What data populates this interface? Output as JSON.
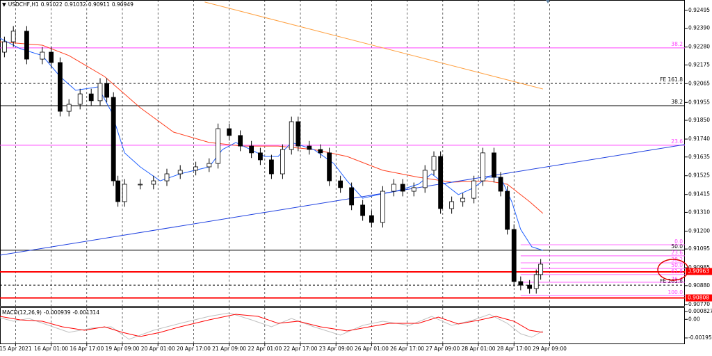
{
  "chart_data": [
    {
      "type": "candlestick",
      "title": "USDCHF,H1",
      "header_values": [
        0.91022,
        0.91032,
        0.90911,
        0.90949
      ],
      "x": [
        2,
        6,
        12,
        19,
        23,
        27,
        31,
        36,
        41,
        45,
        48,
        51,
        53,
        56,
        63,
        69,
        75,
        81,
        88,
        94,
        98,
        103,
        108,
        113,
        117,
        122,
        127,
        131,
        134,
        139,
        144,
        148,
        153,
        158,
        163,
        167,
        172,
        177,
        181,
        186,
        191,
        195,
        198,
        203,
        208,
        213,
        217,
        222,
        225,
        228,
        231,
        234,
        238,
        241,
        243
      ],
      "open": [
        0.9225,
        0.92311,
        0.92373,
        0.92209,
        0.9225,
        0.92189,
        0.91903,
        0.91944,
        0.92005,
        0.91965,
        0.92067,
        0.91985,
        0.91495,
        0.91373,
        0.91475,
        0.91475,
        0.91495,
        0.91536,
        0.91557,
        0.91577,
        0.91597,
        0.91801,
        0.91761,
        0.91699,
        0.91659,
        0.91618,
        0.91536,
        0.91679,
        0.91842,
        0.91699,
        0.91679,
        0.91659,
        0.91495,
        0.91455,
        0.91353,
        0.91291,
        0.91251,
        0.91434,
        0.91475,
        0.91434,
        0.91455,
        0.91557,
        0.91638,
        0.91332,
        0.91373,
        0.91393,
        0.91495,
        0.91659,
        0.91516,
        0.91434,
        0.9121,
        0.90904,
        0.90883,
        0.90863,
        0.90945
      ],
      "high": [
        0.92341,
        0.92403,
        0.92403,
        0.9228,
        0.9228,
        0.92219,
        0.91974,
        0.92035,
        0.92035,
        0.92097,
        0.92097,
        0.92015,
        0.91525,
        0.91505,
        0.91505,
        0.91525,
        0.91566,
        0.91587,
        0.91607,
        0.91627,
        0.91831,
        0.91831,
        0.91791,
        0.91729,
        0.91689,
        0.91648,
        0.91709,
        0.91872,
        0.91872,
        0.91729,
        0.91709,
        0.91689,
        0.91525,
        0.91485,
        0.91383,
        0.91321,
        0.91464,
        0.91505,
        0.91505,
        0.91485,
        0.91587,
        0.91668,
        0.91668,
        0.91403,
        0.91423,
        0.91525,
        0.91689,
        0.91689,
        0.91546,
        0.91464,
        0.9124,
        0.90934,
        0.90913,
        0.90975,
        0.91036
      ],
      "low": [
        0.9222,
        0.92281,
        0.92179,
        0.92179,
        0.92159,
        0.91873,
        0.91873,
        0.91914,
        0.91935,
        0.91935,
        0.91955,
        0.91465,
        0.91343,
        0.91343,
        0.91445,
        0.91445,
        0.91465,
        0.91506,
        0.91527,
        0.91547,
        0.91567,
        0.91731,
        0.91669,
        0.91629,
        0.91588,
        0.91506,
        0.91506,
        0.91649,
        0.91669,
        0.91649,
        0.91629,
        0.91465,
        0.91425,
        0.91323,
        0.91261,
        0.91221,
        0.91221,
        0.91404,
        0.91404,
        0.91404,
        0.91425,
        0.91527,
        0.91302,
        0.91302,
        0.91343,
        0.91363,
        0.91465,
        0.91486,
        0.91404,
        0.9118,
        0.90874,
        0.90853,
        0.90833,
        0.90833,
        0.90915
      ],
      "close": [
        0.92311,
        0.92373,
        0.92209,
        0.9225,
        0.92189,
        0.91903,
        0.91944,
        0.92005,
        0.91965,
        0.92067,
        0.91985,
        0.91495,
        0.91373,
        0.91475,
        0.91475,
        0.91495,
        0.91536,
        0.91557,
        0.91577,
        0.91597,
        0.91801,
        0.91761,
        0.91699,
        0.91659,
        0.91618,
        0.91536,
        0.91679,
        0.91842,
        0.91699,
        0.91679,
        0.91659,
        0.91495,
        0.91455,
        0.91353,
        0.91291,
        0.91251,
        0.91434,
        0.91475,
        0.91434,
        0.91455,
        0.91557,
        0.91638,
        0.91332,
        0.91373,
        0.91393,
        0.91495,
        0.91659,
        0.91516,
        0.91434,
        0.9121,
        0.90904,
        0.90883,
        0.90863,
        0.90945,
        0.91006
      ],
      "overlays": [
        {
          "color": "#ffa040",
          "x": [
            92,
            244
          ],
          "values": [
            0.92544,
            0.92034
          ]
        },
        {
          "color": "#ff4020",
          "x": [
            0,
            19,
            31,
            47,
            63,
            78,
            94,
            109,
            125,
            141,
            156,
            172,
            188,
            203,
            219,
            228,
            238,
            244
          ],
          "values": [
            0.92311,
            0.92291,
            0.9223,
            0.92107,
            0.91924,
            0.91781,
            0.9172,
            0.91699,
            0.91699,
            0.91679,
            0.91638,
            0.91557,
            0.91516,
            0.91487,
            0.91495,
            0.91475,
            0.91373,
            0.91304
          ]
        },
        {
          "color": "#2060ff",
          "x": [
            0,
            9,
            19,
            27,
            34,
            44,
            50,
            56,
            63,
            72,
            81,
            94,
            100,
            106,
            119,
            125,
            131,
            141,
            150,
            156,
            163,
            170,
            178,
            188,
            194,
            200,
            206,
            213,
            219,
            225,
            230,
            234,
            239,
            244
          ],
          "values": [
            0.92332,
            0.92271,
            0.9223,
            0.92107,
            0.92026,
            0.92046,
            0.91903,
            0.91659,
            0.91577,
            0.91495,
            0.91536,
            0.91577,
            0.91679,
            0.9172,
            0.91638,
            0.91638,
            0.9172,
            0.91679,
            0.91597,
            0.91495,
            0.91393,
            0.91414,
            0.91434,
            0.91475,
            0.91536,
            0.91475,
            0.91414,
            0.91455,
            0.91516,
            0.91516,
            0.91373,
            0.9121,
            0.91108,
            0.91087
          ]
        },
        {
          "color": "#1e40e0",
          "x": [
            0,
            307.8
          ],
          "values": [
            0.91059,
            0.91708
          ]
        }
      ],
      "levels": [
        {
          "value": 0.92275,
          "label": "38.2",
          "color": "#ff40ff",
          "style": "solid"
        },
        {
          "value": 0.92067,
          "label": "FE 161.8",
          "color": "#000000",
          "style": "dashed"
        },
        {
          "value": 0.91936,
          "label": "38.2",
          "color": "#000000",
          "style": "solid"
        },
        {
          "value": 0.91704,
          "label": "23.6",
          "color": "#ff40ff",
          "style": "solid"
        },
        {
          "value": 0.91088,
          "label": "50.0",
          "color": "#000000",
          "style": "solid"
        },
        {
          "value": 0.90883,
          "label": "FE 261.8",
          "color": "#000000",
          "style": "dashed"
        },
        {
          "value": 0.90961,
          "color": "#ff0000",
          "style": "thick"
        },
        {
          "value": 0.90808,
          "color": "#ff0000",
          "style": "thick"
        }
      ],
      "fib_levels": [
        {
          "value": 0.9112,
          "label": "0.0"
        },
        {
          "value": 0.91055,
          "label": "23.6"
        },
        {
          "value": 0.91014,
          "label": "38.2"
        },
        {
          "value": 0.90981,
          "label": "50.0"
        },
        {
          "value": 0.90945,
          "label": "61.8"
        },
        {
          "value": 0.909,
          "label": "76.4"
        },
        {
          "value": 0.90822,
          "label": "100.0"
        }
      ],
      "fib_color": "#ff40ff",
      "price_labels": [
        {
          "value": 0.90963,
          "color": "#ff0000"
        },
        {
          "value": 0.90808,
          "color": "#ff0000"
        }
      ],
      "xlim": [
        0,
        307.8
      ],
      "xticks": [
        {
          "value": 7,
          "label": "15 Apr 2021"
        },
        {
          "value": 23,
          "label": "16 Apr 01:00"
        },
        {
          "value": 39,
          "label": "16 Apr 17:00"
        },
        {
          "value": 55,
          "label": "19 Apr 09:00"
        },
        {
          "value": 71,
          "label": "20 Apr 01:00"
        },
        {
          "value": 87,
          "label": "20 Apr 17:00"
        },
        {
          "value": 103,
          "label": "21 Apr 09:00"
        },
        {
          "value": 119,
          "label": "22 Apr 01:00"
        },
        {
          "value": 135,
          "label": "22 Apr 17:00"
        },
        {
          "value": 151,
          "label": "23 Apr 09:00"
        },
        {
          "value": 167,
          "label": "26 Apr 01:00"
        },
        {
          "value": 183,
          "label": "26 Apr 17:00"
        },
        {
          "value": 199,
          "label": "27 Apr 09:00"
        },
        {
          "value": 215,
          "label": "28 Apr 01:00"
        },
        {
          "value": 231,
          "label": "28 Apr 17:00"
        },
        {
          "value": 247,
          "label": "29 Apr 09:00"
        }
      ],
      "ylim": [
        0.90761,
        0.92556
      ],
      "yticks": [
        0.92495,
        {
          "value": 0.9239,
          "label": "0.92390"
        },
        {
          "value": 0.9228,
          "label": "0.92280"
        },
        0.92175,
        0.92065,
        0.91955,
        {
          "value": 0.9185,
          "label": "0.91850"
        },
        {
          "value": 0.9174,
          "label": "0.91740"
        },
        0.91635,
        0.91525,
        0.91415,
        {
          "value": 0.9131,
          "label": "0.91310"
        },
        {
          "value": 0.912,
          "label": "0.91200"
        },
        0.91095,
        0.90985,
        {
          "value": 0.9088,
          "label": "0.90880"
        },
        {
          "value": 0.9077,
          "label": "0.90770"
        }
      ],
      "grid": "x",
      "up_color": "#ffffff",
      "down_color": "#000000"
    },
    {
      "type": "line",
      "title": "MACD(12,26,9)",
      "header_values": [
        -0.000939,
        -0.001314
      ],
      "series": [
        {
          "color": "#c0c0c0",
          "x": [
            0,
            6,
            13,
            22,
            31,
            41,
            50,
            58,
            69,
            81,
            94,
            103,
            113,
            122,
            131,
            141,
            153,
            163,
            172,
            184,
            194,
            203,
            213,
            220,
            228,
            234,
            239,
            244
          ],
          "values": [
            0.000168,
            -0.000198,
            9.5e-05,
            -0.000637,
            -0.001369,
            -0.00093,
            -0.000783,
            -0.002101,
            -0.001149,
            -0.000417,
            0.000315,
            0.000681,
            -5.1e-05,
            -0.000783,
            9.5e-05,
            -0.000783,
            -0.001662,
            -0.000637,
            -0.000198,
            -0.000637,
            0.000315,
            -0.000637,
            -5.1e-05,
            0.000534,
            -0.000417,
            -0.001515,
            -0.001881,
            -0.001222
          ]
        },
        {
          "color": "#ff0000",
          "x": [
            0,
            9,
            19,
            28,
            38,
            47,
            55,
            63,
            72,
            81,
            94,
            106,
            116,
            125,
            134,
            144,
            156,
            166,
            175,
            188,
            197,
            206,
            216,
            223,
            231,
            238,
            244
          ],
          "values": [
            0.000315,
            -5.1e-05,
            -0.000198,
            -0.000783,
            -0.001149,
            -0.000783,
            -0.001369,
            -0.001808,
            -0.001369,
            -0.000783,
            -5.1e-05,
            0.000534,
            0.000315,
            -0.000417,
            -0.000198,
            -0.000783,
            -0.001223,
            -0.000783,
            -0.000417,
            -0.000417,
            0.000241,
            -0.000491,
            -5.1e-05,
            0.000315,
            -0.000198,
            -0.001149,
            -0.001369
          ]
        }
      ],
      "xlim": [
        0,
        307.8
      ],
      "ylim": [
        -0.002542,
        0.001193
      ],
      "yticks": [
        0.000827,
        {
          "value": 0,
          "label": "0.00"
        },
        -0.001956
      ]
    }
  ]
}
